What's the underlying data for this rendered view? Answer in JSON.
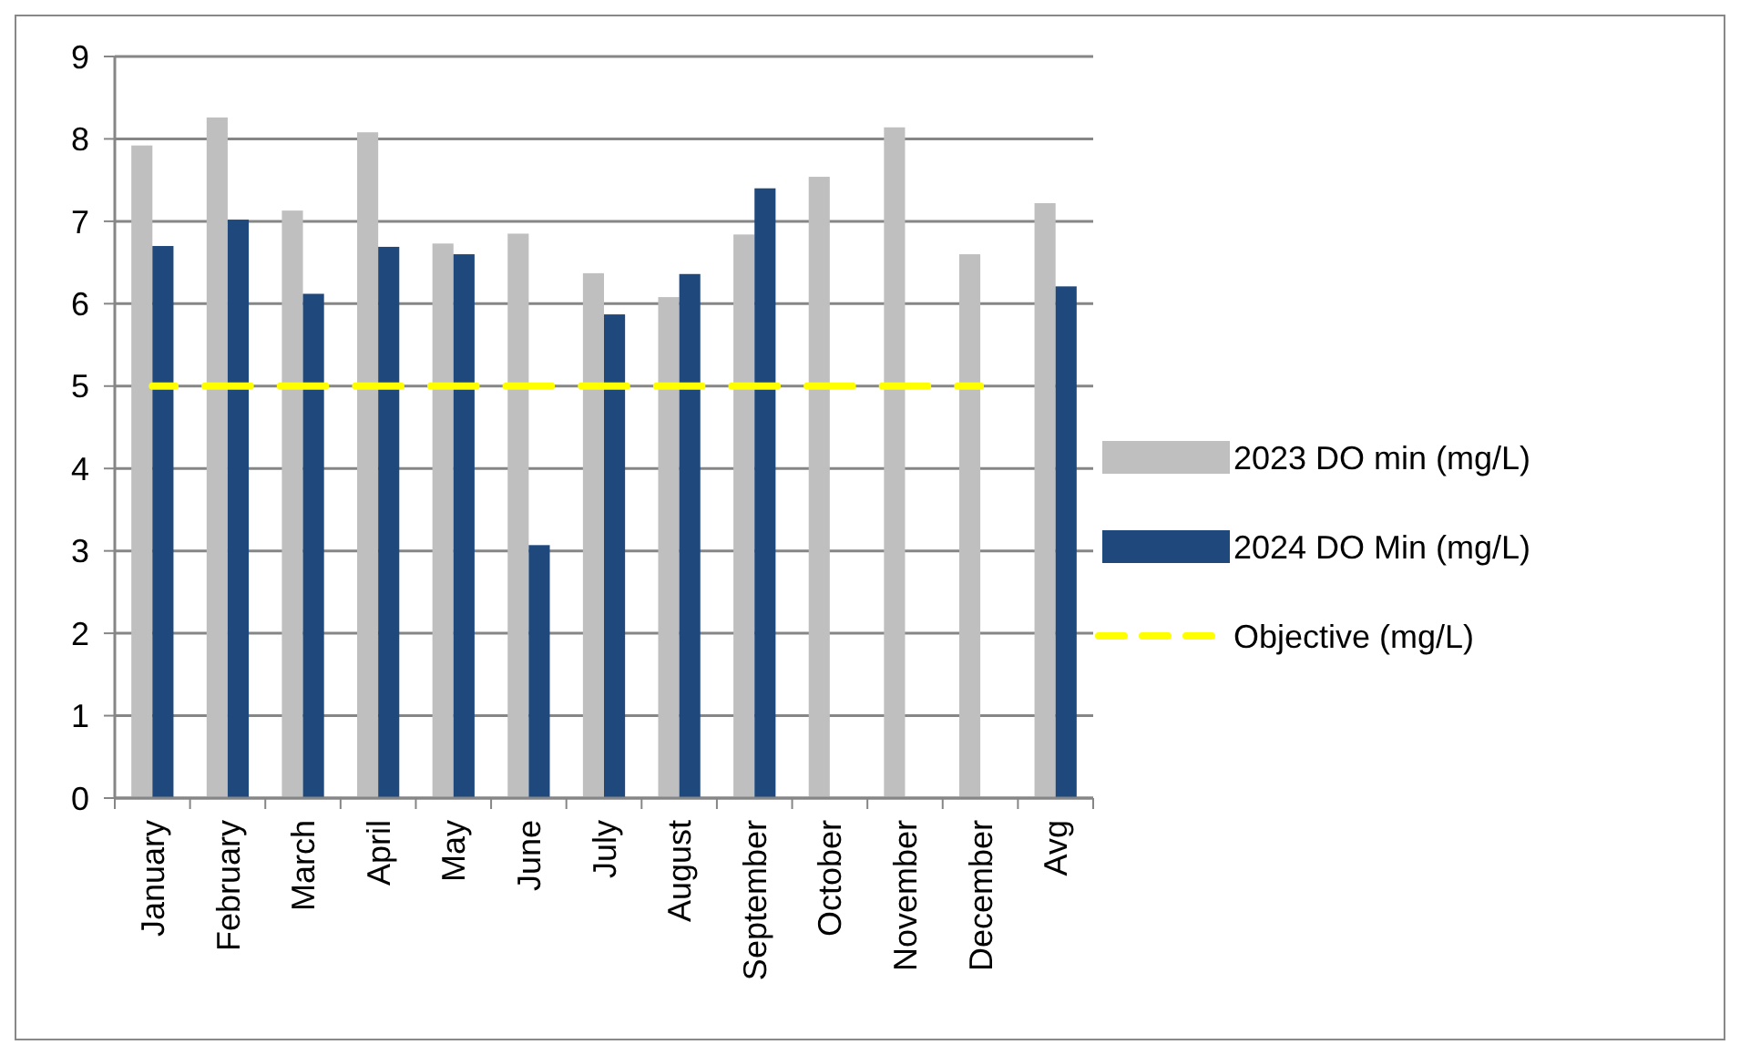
{
  "chart_data": {
    "type": "bar",
    "categories": [
      "January",
      "February",
      "March",
      "April",
      "May",
      "June",
      "July",
      "August",
      "September",
      "October",
      "November",
      "December",
      "Avg"
    ],
    "series": [
      {
        "name": "2023 DO min (mg/L)",
        "color": "#bfbfbf",
        "values": [
          7.92,
          8.26,
          7.13,
          8.08,
          6.73,
          6.85,
          6.37,
          6.08,
          6.84,
          7.54,
          8.14,
          6.6,
          7.22
        ]
      },
      {
        "name": "2024 DO Min (mg/L)",
        "color": "#1f497d",
        "values": [
          6.7,
          7.02,
          6.12,
          6.69,
          6.6,
          3.07,
          5.87,
          6.36,
          7.4,
          null,
          null,
          null,
          6.21
        ]
      },
      {
        "name": "Objective (mg/L)",
        "color": "#ffff00",
        "type": "line",
        "line_style": "dashed",
        "marker": "none",
        "values": [
          5,
          5,
          5,
          5,
          5,
          5,
          5,
          5,
          5,
          5,
          5,
          5,
          null
        ]
      }
    ],
    "ylim": [
      0,
      9
    ],
    "yticks": [
      0,
      1,
      2,
      3,
      4,
      5,
      6,
      7,
      8,
      9
    ],
    "grid": "y",
    "legend": "right"
  }
}
